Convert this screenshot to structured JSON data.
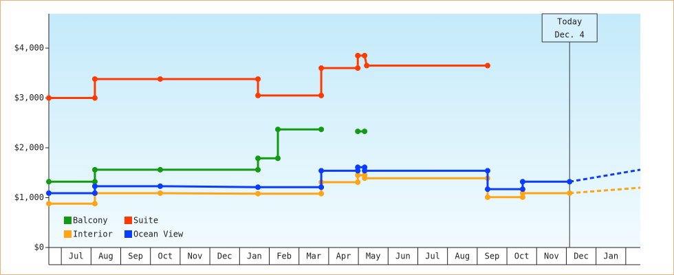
{
  "chart_data": {
    "type": "line",
    "xlim": [
      0.58,
      20.49
    ],
    "xticks": [
      {
        "value": 1.5,
        "label": "Jul"
      },
      {
        "value": 2.5,
        "label": "Aug"
      },
      {
        "value": 3.5,
        "label": "Sep"
      },
      {
        "value": 4.5,
        "label": "Oct"
      },
      {
        "value": 5.5,
        "label": "Nov"
      },
      {
        "value": 6.5,
        "label": "Dec"
      },
      {
        "value": 7.5,
        "label": "Jan"
      },
      {
        "value": 8.5,
        "label": "Feb"
      },
      {
        "value": 9.5,
        "label": "Mar"
      },
      {
        "value": 10.5,
        "label": "Apr"
      },
      {
        "value": 11.5,
        "label": "May"
      },
      {
        "value": 12.5,
        "label": "Jun"
      },
      {
        "value": 13.5,
        "label": "Jul"
      },
      {
        "value": 14.5,
        "label": "Aug"
      },
      {
        "value": 15.5,
        "label": "Sep"
      },
      {
        "value": 16.5,
        "label": "Oct"
      },
      {
        "value": 17.5,
        "label": "Nov"
      },
      {
        "value": 18.5,
        "label": "Dec"
      },
      {
        "value": 19.5,
        "label": "Jan"
      }
    ],
    "ylim": [
      0,
      4690
    ],
    "yticks": [
      {
        "value": 0,
        "label": "$0"
      },
      {
        "value": 1000,
        "label": "$1,000"
      },
      {
        "value": 2000,
        "label": "$2,000"
      },
      {
        "value": 3000,
        "label": "$3,000"
      },
      {
        "value": 4000,
        "label": "$4,000"
      }
    ],
    "grid": false,
    "legend": "bottom-left",
    "annotation": {
      "x": 18.11,
      "lines": [
        "Today",
        "Dec. 4"
      ]
    },
    "series": [
      {
        "name": "Balcony",
        "color": "#139a13",
        "x": [
          0.58,
          2.13,
          2.13,
          4.33,
          7.62,
          7.62,
          8.29,
          8.29,
          9.75,
          null,
          10.98,
          11.21
        ],
        "values": [
          1320,
          1320,
          1560,
          1560,
          1560,
          1790,
          1790,
          2370,
          2370,
          null,
          2330,
          2330
        ]
      },
      {
        "name": "Suite",
        "color": "#ff3a00",
        "x": [
          0.58,
          2.13,
          2.13,
          4.33,
          7.62,
          7.62,
          9.75,
          9.75,
          10.98,
          10.98,
          11.21,
          11.28,
          15.35
        ],
        "values": [
          3000,
          3000,
          3380,
          3380,
          3380,
          3050,
          3050,
          3600,
          3600,
          3850,
          3850,
          3650,
          3650
        ]
      },
      {
        "name": "Interior",
        "color": "#ffa414",
        "x": [
          0.58,
          2.13,
          2.13,
          4.33,
          7.62,
          9.75,
          9.75,
          10.98,
          10.98,
          11.21,
          11.21,
          15.35,
          15.35,
          16.53,
          16.53,
          18.11
        ],
        "values": [
          880,
          880,
          1090,
          1090,
          1080,
          1080,
          1310,
          1310,
          1450,
          1450,
          1390,
          1390,
          1010,
          1010,
          1090,
          1090
        ],
        "forecast_x": 20.49,
        "forecast_value": 1200
      },
      {
        "name": "Ocean View",
        "color": "#0a3cff",
        "x": [
          0.58,
          2.13,
          2.13,
          4.33,
          7.62,
          9.75,
          9.75,
          10.98,
          10.98,
          11.21,
          11.21,
          15.35,
          15.35,
          16.53,
          16.53,
          18.11
        ],
        "values": [
          1090,
          1090,
          1230,
          1230,
          1210,
          1210,
          1540,
          1540,
          1610,
          1610,
          1540,
          1540,
          1170,
          1170,
          1320,
          1320
        ],
        "forecast_x": 20.49,
        "forecast_value": 1560
      }
    ]
  }
}
